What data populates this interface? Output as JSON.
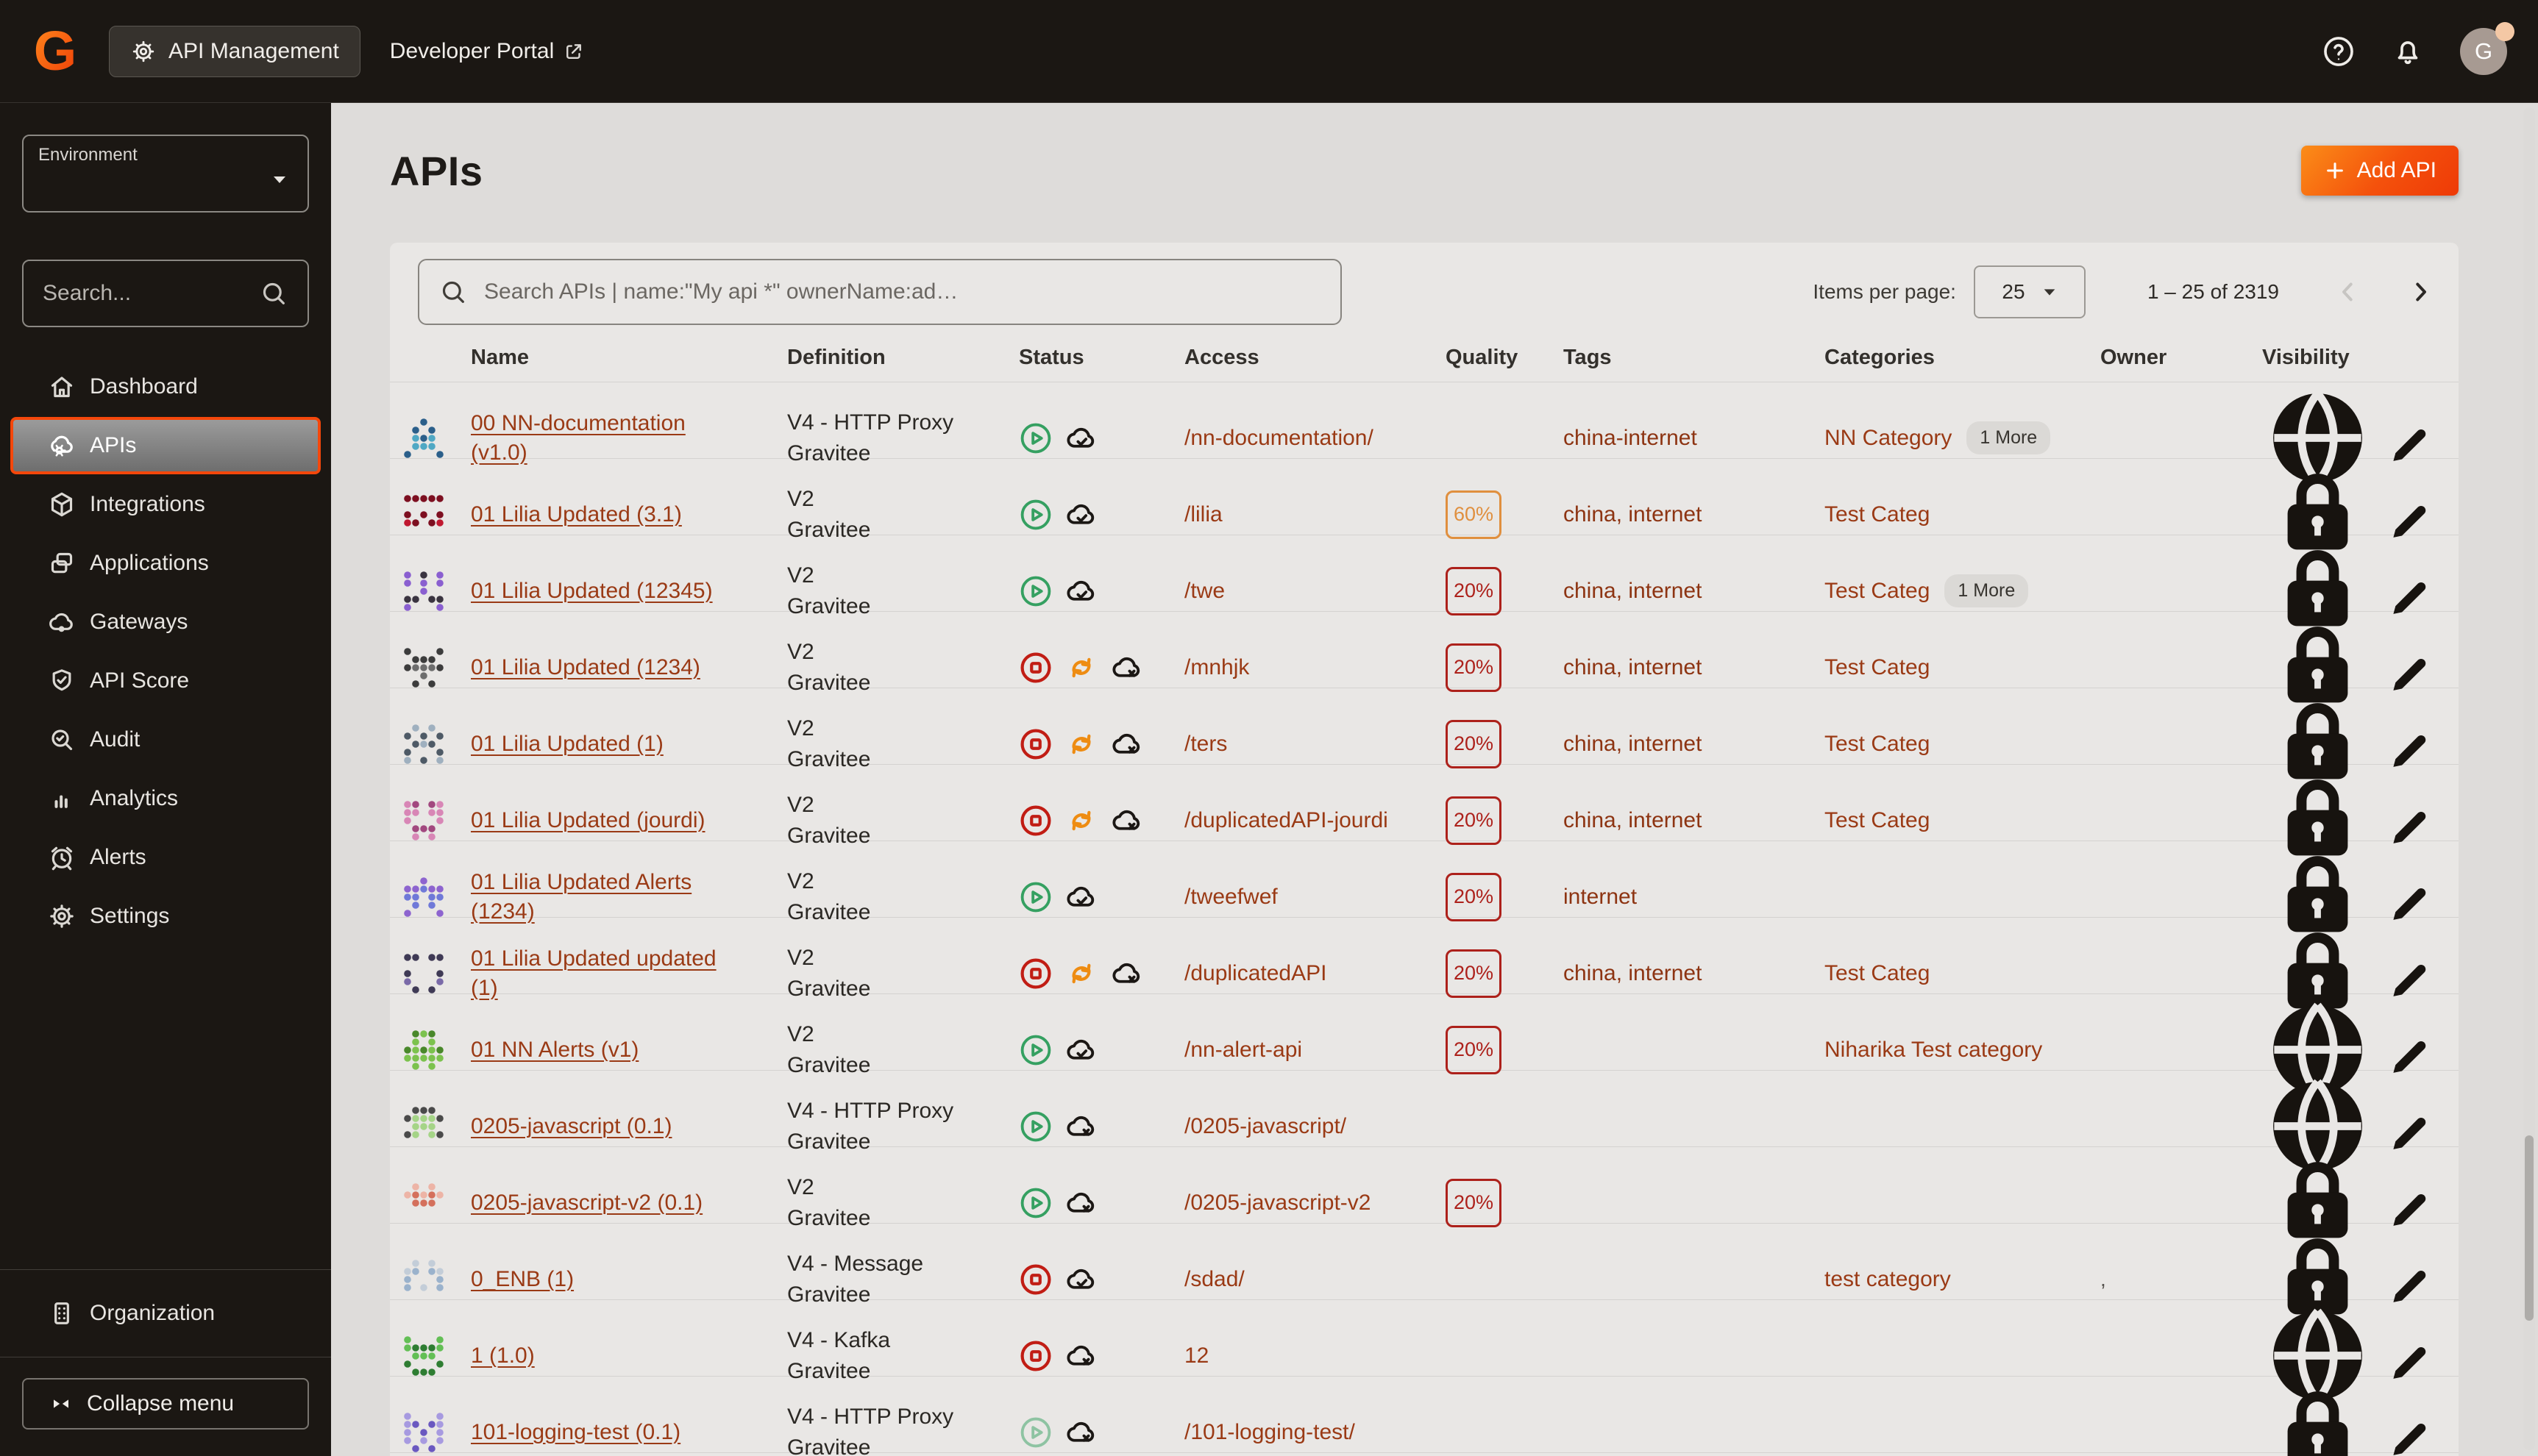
{
  "colors": {
    "accent": "#f4470b",
    "rust": "#9a3a15",
    "tag": "#8d3412",
    "green": "#35a061",
    "red": "#c11d14",
    "sync": "#ee8c12",
    "q_warn": "#e08f3e",
    "q_bad": "#ad211b",
    "dark": "#1b1713",
    "card_bg": "#e9e7e5"
  },
  "topbar": {
    "logo_letter": "G",
    "app_chip": "API Management",
    "dev_portal": "Developer Portal",
    "avatar_initial": "G"
  },
  "sidebar": {
    "environment_label": "Environment",
    "environment_value": "",
    "search_placeholder": "Search...",
    "items": [
      {
        "label": "Dashboard",
        "icon": "home",
        "selected": false
      },
      {
        "label": "APIs",
        "icon": "apis",
        "selected": true
      },
      {
        "label": "Integrations",
        "icon": "box",
        "selected": false
      },
      {
        "label": "Applications",
        "icon": "apps",
        "selected": false
      },
      {
        "label": "Gateways",
        "icon": "gateway",
        "selected": false
      },
      {
        "label": "API Score",
        "icon": "shield",
        "selected": false
      },
      {
        "label": "Audit",
        "icon": "audit",
        "selected": false
      },
      {
        "label": "Analytics",
        "icon": "bars",
        "selected": false
      },
      {
        "label": "Alerts",
        "icon": "alarm",
        "selected": false
      },
      {
        "label": "Settings",
        "icon": "gear",
        "selected": false
      }
    ],
    "organization_label": "Organization",
    "collapse_label": "Collapse menu"
  },
  "header": {
    "title": "APIs",
    "add_button": "Add API"
  },
  "toolbar": {
    "search_placeholder": "Search APIs | name:\"My api *\" ownerName:ad…",
    "items_per_page_label": "Items per page:",
    "items_per_page_value": "25",
    "range": "1 – 25 of 2319"
  },
  "table": {
    "columns": [
      "Name",
      "Definition",
      "Status",
      "Access",
      "Quality",
      "Tags",
      "Categories",
      "Owner",
      "Visibility"
    ],
    "rows": [
      {
        "name": "00 NN-documentation (v1.0)",
        "definition": [
          "V4 - HTTP Proxy",
          "Gravitee"
        ],
        "status": [
          "started",
          "deployed"
        ],
        "access": "/nn-documentation/",
        "quality": null,
        "tags": "china-internet",
        "categories": {
          "text": "NN Category",
          "more": "1 More"
        },
        "owner": "",
        "visibility": "globe",
        "avatar": [
          "#4fa8c4",
          "#2b5f8a"
        ]
      },
      {
        "name": "01 Lilia Updated (3.1)",
        "definition": [
          "V2",
          "Gravitee"
        ],
        "status": [
          "started",
          "deployed"
        ],
        "access": "/lilia",
        "quality": {
          "value": "60%",
          "level": "warn"
        },
        "tags": "china, internet",
        "categories": {
          "text": "Test Categ",
          "more": null
        },
        "owner": "",
        "visibility": "lock",
        "avatar": [
          "#c01830",
          "#7d0f20"
        ]
      },
      {
        "name": "01 Lilia Updated (12345)",
        "definition": [
          "V2",
          "Gravitee"
        ],
        "status": [
          "started",
          "deployed"
        ],
        "access": "/twe",
        "quality": {
          "value": "20%",
          "level": "bad"
        },
        "tags": "china, internet",
        "categories": {
          "text": "Test Categ",
          "more": "1 More"
        },
        "owner": "",
        "visibility": "lock",
        "avatar": [
          "#8a5fd0",
          "#3a3440"
        ]
      },
      {
        "name": "01 Lilia Updated (1234)",
        "definition": [
          "V2",
          "Gravitee"
        ],
        "status": [
          "stopped",
          "out_of_sync",
          "undeployed"
        ],
        "access": "/mnhjk",
        "quality": {
          "value": "20%",
          "level": "bad"
        },
        "tags": "china, internet",
        "categories": {
          "text": "Test Categ",
          "more": null
        },
        "owner": "",
        "visibility": "lock",
        "avatar": [
          "#6d6d6d",
          "#3c3c3c"
        ]
      },
      {
        "name": "01 Lilia Updated (1)",
        "definition": [
          "V2",
          "Gravitee"
        ],
        "status": [
          "stopped",
          "out_of_sync",
          "undeployed"
        ],
        "access": "/ters",
        "quality": {
          "value": "20%",
          "level": "bad"
        },
        "tags": "china, internet",
        "categories": {
          "text": "Test Categ",
          "more": null
        },
        "owner": "",
        "visibility": "lock",
        "avatar": [
          "#9fb0bf",
          "#4e5a66"
        ]
      },
      {
        "name": "01 Lilia Updated (jourdi)",
        "definition": [
          "V2",
          "Gravitee"
        ],
        "status": [
          "stopped",
          "out_of_sync",
          "undeployed"
        ],
        "access": "/duplicatedAPI-jourdi",
        "quality": {
          "value": "20%",
          "level": "bad"
        },
        "tags": "china, internet",
        "categories": {
          "text": "Test Categ",
          "more": null
        },
        "owner": "",
        "visibility": "lock",
        "avatar": [
          "#d886b6",
          "#a2487f"
        ]
      },
      {
        "name": "01 Lilia Updated Alerts (1234)",
        "definition": [
          "V2",
          "Gravitee"
        ],
        "status": [
          "started",
          "deployed"
        ],
        "access": "/tweefwef",
        "quality": {
          "value": "20%",
          "level": "bad"
        },
        "tags": "internet",
        "categories": {
          "text": "",
          "more": null
        },
        "owner": "",
        "visibility": "lock",
        "avatar": [
          "#6f79d8",
          "#8d64cf"
        ]
      },
      {
        "name": "01 Lilia Updated updated (1)",
        "definition": [
          "V2",
          "Gravitee"
        ],
        "status": [
          "stopped",
          "out_of_sync",
          "undeployed"
        ],
        "access": "/duplicatedAPI",
        "quality": {
          "value": "20%",
          "level": "bad"
        },
        "tags": "china, internet",
        "categories": {
          "text": "Test Categ",
          "more": null
        },
        "owner": "",
        "visibility": "lock",
        "avatar": [
          "#7a6aa8",
          "#3f3a55"
        ]
      },
      {
        "name": "01 NN Alerts (v1)",
        "definition": [
          "V2",
          "Gravitee"
        ],
        "status": [
          "started",
          "deployed"
        ],
        "access": "/nn-alert-api",
        "quality": {
          "value": "20%",
          "level": "bad"
        },
        "tags": "",
        "categories": {
          "text": "Niharika Test category",
          "more": null
        },
        "owner": "",
        "visibility": "globe",
        "avatar": [
          "#7cc24e",
          "#49882a"
        ]
      },
      {
        "name": "0205-javascript (0.1)",
        "definition": [
          "V4 - HTTP Proxy",
          "Gravitee"
        ],
        "status": [
          "started",
          "undeployed"
        ],
        "access": "/0205-javascript/",
        "quality": null,
        "tags": "",
        "categories": {
          "text": "",
          "more": null
        },
        "owner": "",
        "visibility": "globe",
        "avatar": [
          "#a5d487",
          "#4a4a4a"
        ]
      },
      {
        "name": "0205-javascript-v2 (0.1)",
        "definition": [
          "V2",
          "Gravitee"
        ],
        "status": [
          "started",
          "undeployed"
        ],
        "access": "/0205-javascript-v2",
        "quality": {
          "value": "20%",
          "level": "bad"
        },
        "tags": "",
        "categories": {
          "text": "",
          "more": null
        },
        "owner": "",
        "visibility": "lock",
        "avatar": [
          "#d4705c",
          "#edb4a6"
        ]
      },
      {
        "name": "0_ENB (1)",
        "definition": [
          "V4 - Message",
          "Gravitee"
        ],
        "status": [
          "stopped",
          "deployed"
        ],
        "access": "/sdad/",
        "quality": null,
        "tags": "",
        "categories": {
          "text": "test category",
          "more": null
        },
        "owner": ",",
        "visibility": "lock",
        "avatar": [
          "#9ab2cc",
          "#c3cdd8"
        ]
      },
      {
        "name": "1 (1.0)",
        "definition": [
          "V4 - Kafka",
          "Gravitee"
        ],
        "status": [
          "stopped",
          "undeployed"
        ],
        "access": "12",
        "quality": null,
        "tags": "",
        "categories": {
          "text": "",
          "more": null
        },
        "owner": "",
        "visibility": "globe",
        "avatar": [
          "#63bf55",
          "#2e7d32"
        ]
      },
      {
        "name": "101-logging-test (0.1)",
        "definition": [
          "V4 - HTTP Proxy",
          "Gravitee"
        ],
        "status": [
          "started_pale",
          "undeployed"
        ],
        "access": "/101-logging-test/",
        "quality": null,
        "tags": "",
        "categories": {
          "text": "",
          "more": null
        },
        "owner": "",
        "visibility": "lock",
        "avatar": [
          "#a79ae0",
          "#6a58c0"
        ]
      }
    ]
  }
}
